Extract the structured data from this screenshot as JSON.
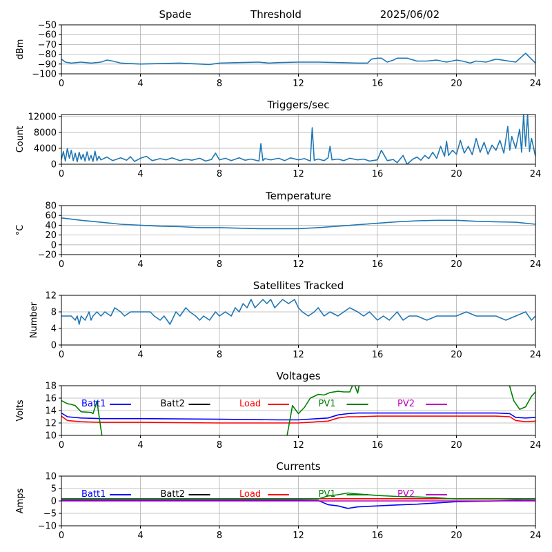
{
  "header": {
    "station": "Spade",
    "mode": "Threshold",
    "date": "2025/06/02"
  },
  "chart_data": [
    {
      "type": "line",
      "title": "",
      "xlabel": "",
      "ylabel": "dBm",
      "xlim": [
        0,
        24
      ],
      "ylim": [
        -100,
        -50
      ],
      "xticks": [
        0,
        4,
        8,
        12,
        16,
        20,
        24
      ],
      "yticks": [
        -100,
        -90,
        -80,
        -70,
        -60,
        -50
      ],
      "ytick_labels": [
        "−100",
        "−90",
        "−80",
        "−70",
        "−60",
        "−50"
      ],
      "grid": true,
      "color": "#1f77b4",
      "x": [
        0,
        0.2,
        0.5,
        1,
        1.5,
        2,
        2.3,
        2.6,
        3,
        4,
        5,
        6,
        7,
        7.5,
        8,
        9,
        10,
        10.5,
        11,
        12,
        13,
        14,
        15,
        15.5,
        15.7,
        16,
        16.2,
        16.5,
        16.8,
        17,
        17.5,
        18,
        18.5,
        19,
        19.5,
        20,
        20.3,
        20.7,
        21,
        21.5,
        22,
        23,
        23.5,
        24
      ],
      "y": [
        -85,
        -88,
        -89,
        -88,
        -89,
        -88,
        -86,
        -87,
        -89,
        -90,
        -89.5,
        -89,
        -90,
        -90.5,
        -89,
        -88.5,
        -88,
        -89,
        -88.5,
        -88,
        -88,
        -88.5,
        -89,
        -89,
        -85,
        -84,
        -84,
        -88,
        -86,
        -84,
        -84,
        -87,
        -87,
        -86,
        -88,
        -86,
        -87,
        -89,
        -87,
        -88,
        -85,
        -88,
        -79,
        -89
      ]
    },
    {
      "type": "line",
      "title": "Triggers/sec",
      "xlabel": "",
      "ylabel": "Count",
      "xlim": [
        0,
        24
      ],
      "ylim": [
        0,
        12500
      ],
      "xticks": [
        0,
        4,
        8,
        12,
        16,
        20,
        24
      ],
      "yticks": [
        0,
        4000,
        8000,
        12000
      ],
      "grid": true,
      "color": "#1f77b4",
      "x": [
        0,
        0.1,
        0.2,
        0.3,
        0.4,
        0.5,
        0.6,
        0.7,
        0.8,
        0.9,
        1.0,
        1.1,
        1.2,
        1.3,
        1.4,
        1.5,
        1.6,
        1.7,
        1.8,
        1.9,
        2.0,
        2.3,
        2.6,
        3.0,
        3.3,
        3.5,
        3.7,
        4.0,
        4.3,
        4.6,
        5.0,
        5.3,
        5.6,
        6.0,
        6.3,
        6.6,
        7.0,
        7.3,
        7.6,
        7.8,
        8.0,
        8.3,
        8.6,
        9.0,
        9.3,
        9.6,
        10.0,
        10.1,
        10.2,
        10.3,
        10.6,
        11.0,
        11.3,
        11.6,
        12.0,
        12.3,
        12.6,
        12.7,
        12.8,
        13.0,
        13.3,
        13.5,
        13.6,
        13.7,
        14.0,
        14.3,
        14.6,
        15.0,
        15.3,
        15.6,
        16.0,
        16.2,
        16.5,
        16.8,
        17.0,
        17.3,
        17.5,
        17.8,
        18.0,
        18.2,
        18.4,
        18.6,
        18.8,
        19.0,
        19.2,
        19.4,
        19.5,
        19.6,
        19.8,
        20.0,
        20.2,
        20.4,
        20.6,
        20.8,
        21.0,
        21.2,
        21.4,
        21.6,
        21.8,
        22.0,
        22.2,
        22.4,
        22.6,
        22.7,
        22.8,
        23.0,
        23.2,
        23.3,
        23.4,
        23.5,
        23.6,
        23.7,
        23.8,
        24
      ],
      "y": [
        1200,
        3200,
        800,
        4000,
        1500,
        3500,
        900,
        2800,
        600,
        3000,
        1200,
        2500,
        800,
        3100,
        1000,
        2200,
        700,
        3300,
        900,
        2000,
        1100,
        1800,
        900,
        1600,
        1000,
        1900,
        700,
        1500,
        2000,
        900,
        1400,
        1100,
        1600,
        900,
        1300,
        1000,
        1500,
        800,
        1200,
        2800,
        1100,
        1500,
        900,
        1600,
        1000,
        1300,
        800,
        5200,
        900,
        1400,
        1100,
        1500,
        900,
        1600,
        1100,
        1400,
        800,
        9200,
        1000,
        1300,
        900,
        1600,
        4500,
        1100,
        1300,
        900,
        1500,
        1100,
        1300,
        800,
        1100,
        3500,
        900,
        1200,
        400,
        2200,
        0,
        1300,
        1800,
        1000,
        2200,
        1400,
        3000,
        1500,
        4500,
        2000,
        5800,
        2200,
        3500,
        2500,
        6000,
        2800,
        4500,
        2400,
        6500,
        3000,
        5500,
        2500,
        4800,
        3500,
        6000,
        2800,
        9500,
        3500,
        7000,
        4000,
        8800,
        3000,
        12500,
        4500,
        12500,
        3200,
        6500,
        2000
      ]
    },
    {
      "type": "line",
      "title": "Temperature",
      "xlabel": "",
      "ylabel": "°C",
      "xlim": [
        0,
        24
      ],
      "ylim": [
        -20,
        80
      ],
      "xticks": [
        0,
        4,
        8,
        12,
        16,
        20,
        24
      ],
      "yticks": [
        -20,
        0,
        20,
        40,
        60,
        80
      ],
      "ytick_labels": [
        "−20",
        "0",
        "20",
        "40",
        "60",
        "80"
      ],
      "grid": true,
      "color": "#1f77b4",
      "x": [
        0,
        1,
        2,
        3,
        4,
        5,
        6,
        7,
        8,
        9,
        10,
        11,
        12,
        13,
        14,
        15,
        16,
        17,
        18,
        19,
        20,
        21,
        22,
        23,
        24
      ],
      "y": [
        55,
        50,
        46,
        42,
        40,
        38,
        37,
        35,
        35,
        34,
        33,
        33,
        33,
        35,
        38,
        41,
        44,
        47,
        49,
        50,
        50,
        48,
        47,
        46,
        42
      ]
    },
    {
      "type": "line",
      "title": "Satellites Tracked",
      "xlabel": "",
      "ylabel": "Number",
      "xlim": [
        0,
        24
      ],
      "ylim": [
        0,
        12
      ],
      "xticks": [
        0,
        4,
        8,
        12,
        16,
        20,
        24
      ],
      "yticks": [
        0,
        4,
        8,
        12
      ],
      "grid": true,
      "color": "#1f77b4",
      "x": [
        0,
        0.5,
        0.7,
        0.8,
        0.9,
        1.0,
        1.2,
        1.4,
        1.5,
        1.6,
        1.8,
        2.0,
        2.2,
        2.5,
        2.7,
        3.0,
        3.2,
        3.5,
        3.8,
        4.0,
        4.5,
        4.7,
        5.0,
        5.2,
        5.5,
        5.8,
        6.0,
        6.3,
        6.5,
        6.8,
        7.0,
        7.2,
        7.5,
        7.8,
        8.0,
        8.3,
        8.6,
        8.8,
        9.0,
        9.2,
        9.4,
        9.6,
        9.8,
        10.0,
        10.2,
        10.4,
        10.6,
        10.8,
        11.0,
        11.2,
        11.5,
        11.8,
        12.0,
        12.2,
        12.5,
        12.8,
        13.0,
        13.3,
        13.6,
        14.0,
        14.3,
        14.6,
        15.0,
        15.3,
        15.6,
        16.0,
        16.3,
        16.6,
        17.0,
        17.3,
        17.6,
        18.0,
        18.5,
        19.0,
        19.5,
        20.0,
        20.5,
        21.0,
        21.5,
        22.0,
        22.5,
        23.0,
        23.5,
        23.8,
        24
      ],
      "y": [
        7,
        7,
        6,
        7,
        5,
        7,
        6,
        8,
        6,
        7,
        8,
        7,
        8,
        7,
        9,
        8,
        7,
        8,
        8,
        8,
        8,
        7,
        6,
        7,
        5,
        8,
        7,
        9,
        8,
        7,
        6,
        7,
        6,
        8,
        7,
        8,
        7,
        9,
        8,
        10,
        9,
        11,
        9,
        10,
        11,
        10,
        11,
        9,
        10,
        11,
        10,
        11,
        9,
        8,
        7,
        8,
        9,
        7,
        8,
        7,
        8,
        9,
        8,
        7,
        8,
        6,
        7,
        6,
        8,
        6,
        7,
        7,
        6,
        7,
        7,
        7,
        8,
        7,
        7,
        7,
        6,
        7,
        8,
        6,
        7
      ]
    },
    {
      "type": "line",
      "title": "Voltages",
      "xlabel": "",
      "ylabel": "Volts",
      "xlim": [
        0,
        24
      ],
      "ylim": [
        10,
        18
      ],
      "xticks": [
        0,
        4,
        8,
        12,
        16,
        20,
        24
      ],
      "yticks": [
        10,
        12,
        14,
        16,
        18
      ],
      "grid": true,
      "legend": "top (one row inside plot)",
      "series": [
        {
          "name": "Batt1",
          "color": "#0000ff",
          "x": [
            0,
            0.3,
            1,
            2,
            4,
            8,
            11,
            12,
            13,
            13.5,
            14,
            14.5,
            15,
            16,
            20,
            22,
            22.7,
            23,
            23.5,
            24
          ],
          "y": [
            13.6,
            13.0,
            12.8,
            12.7,
            12.7,
            12.6,
            12.5,
            12.5,
            12.7,
            12.8,
            13.3,
            13.5,
            13.6,
            13.6,
            13.6,
            13.6,
            13.5,
            12.9,
            12.8,
            12.9
          ]
        },
        {
          "name": "Batt2",
          "color": "#000000",
          "x": [],
          "y": []
        },
        {
          "name": "Load",
          "color": "#ff0000",
          "x": [
            0,
            0.3,
            1,
            2,
            4,
            8,
            11,
            12,
            13,
            13.5,
            14,
            14.5,
            15,
            16,
            20,
            22,
            22.7,
            23,
            23.5,
            24
          ],
          "y": [
            13.1,
            12.4,
            12.2,
            12.1,
            12.1,
            12.0,
            12.0,
            12.0,
            12.2,
            12.3,
            12.8,
            13.0,
            13.0,
            13.1,
            13.1,
            13.1,
            13.0,
            12.4,
            12.2,
            12.3
          ]
        },
        {
          "name": "PV1",
          "color": "#008000",
          "x": [
            0,
            0.3,
            0.5,
            0.7,
            1.0,
            1.5,
            1.6,
            1.8,
            2.0,
            2.1,
            11.4,
            11.7,
            12.0,
            12.3,
            12.6,
            13.0,
            13.3,
            13.6,
            14.0,
            14.3,
            14.6,
            14.8,
            15.0,
            15.1,
            15.3,
            22.6,
            22.9,
            23.2,
            23.5,
            23.8,
            24.0
          ],
          "y": [
            15.6,
            15.1,
            15.0,
            14.8,
            13.8,
            13.7,
            13.5,
            15.5,
            11.0,
            9.0,
            9.5,
            14.8,
            13.5,
            14.5,
            16.0,
            16.6,
            16.5,
            16.9,
            17.1,
            17.0,
            17.0,
            18.5,
            16.8,
            18.5,
            19.0,
            19.0,
            15.6,
            14.2,
            14.6,
            16.3,
            17.0
          ]
        },
        {
          "name": "PV2",
          "color": "#bf00bf",
          "x": [],
          "y": []
        }
      ]
    },
    {
      "type": "line",
      "title": "Currents",
      "xlabel": "",
      "ylabel": "Amps",
      "xlim": [
        0,
        24
      ],
      "ylim": [
        -10,
        10
      ],
      "xticks": [
        0,
        4,
        8,
        12,
        16,
        20,
        24
      ],
      "yticks": [
        -10,
        -5,
        0,
        5,
        10
      ],
      "ytick_labels": [
        "−10",
        "−5",
        "0",
        "5",
        "10"
      ],
      "grid": true,
      "legend": "top (one row inside plot)",
      "series": [
        {
          "name": "Batt1",
          "color": "#0000ff",
          "x": [
            0,
            2,
            4,
            6,
            8,
            10,
            12,
            13,
            13.5,
            14,
            14.5,
            15,
            16,
            17,
            18,
            19,
            20,
            22,
            23,
            24
          ],
          "y": [
            0.3,
            0.3,
            0.3,
            0.3,
            0.3,
            0.3,
            0.3,
            0.2,
            -1.5,
            -2.0,
            -3.0,
            -2.4,
            -2.0,
            -1.6,
            -1.3,
            -0.8,
            -0.3,
            0.0,
            0.3,
            0.2
          ]
        },
        {
          "name": "Batt2",
          "color": "#000000",
          "x": [],
          "y": []
        },
        {
          "name": "Load",
          "color": "#ff0000",
          "x": [
            0,
            4,
            8,
            12,
            16,
            20,
            24
          ],
          "y": [
            0.9,
            0.9,
            0.9,
            0.9,
            0.9,
            0.9,
            0.9
          ]
        },
        {
          "name": "PV1",
          "color": "#008000",
          "x": [
            0,
            4,
            8,
            12,
            13,
            13.5,
            14,
            14.5,
            15,
            16,
            17,
            18,
            19,
            19.5,
            20,
            22,
            24
          ],
          "y": [
            0.8,
            0.8,
            0.8,
            0.8,
            0.8,
            2.0,
            2.5,
            3.2,
            2.8,
            2.2,
            1.8,
            1.6,
            1.3,
            1.0,
            0.8,
            0.8,
            0.8
          ]
        },
        {
          "name": "PV2",
          "color": "#bf00bf",
          "x": [
            0,
            4,
            8,
            12,
            16,
            20,
            24
          ],
          "y": [
            0.0,
            0.0,
            0.0,
            0.0,
            0.0,
            0.0,
            0.0
          ]
        }
      ]
    }
  ]
}
